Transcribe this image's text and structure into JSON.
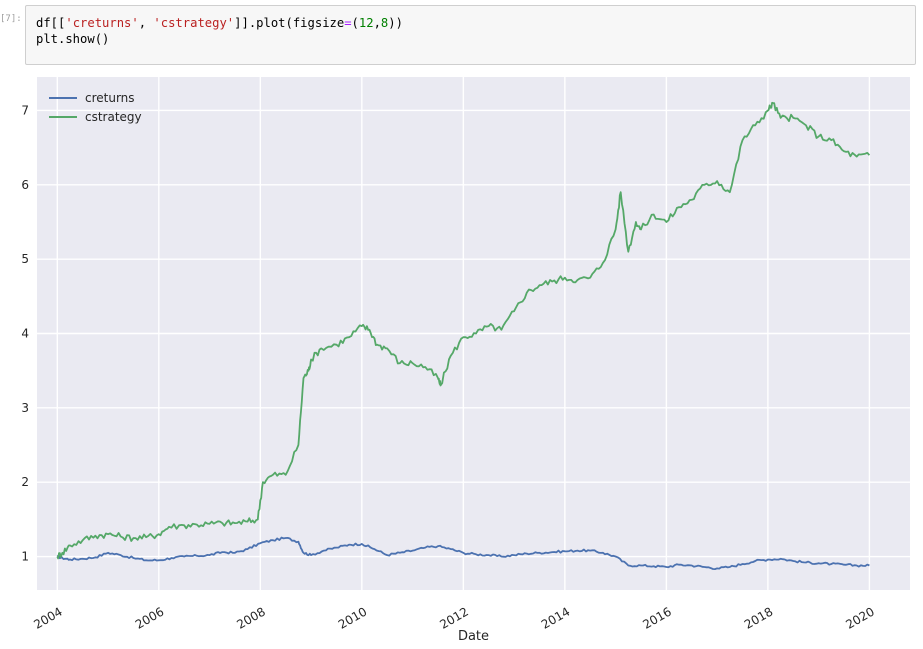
{
  "cell": {
    "prompt": "[7]:",
    "code_lines": [
      [
        {
          "t": "df[[",
          "c": ""
        },
        {
          "t": "'creturns'",
          "c": "str"
        },
        {
          "t": ", ",
          "c": ""
        },
        {
          "t": "'cstrategy'",
          "c": "str"
        },
        {
          "t": "]].plot(figsize",
          "c": ""
        },
        {
          "t": "=",
          "c": "op"
        },
        {
          "t": "(",
          "c": ""
        },
        {
          "t": "12",
          "c": "num"
        },
        {
          "t": ",",
          "c": ""
        },
        {
          "t": "8",
          "c": "num"
        },
        {
          "t": "))",
          "c": ""
        }
      ],
      [
        {
          "t": "plt.show()",
          "c": ""
        }
      ]
    ]
  },
  "chart_data": {
    "type": "line",
    "title": "",
    "xlabel": "Date",
    "ylabel": "",
    "xlim": [
      2003.6,
      2020.8
    ],
    "ylim": [
      0.55,
      7.45
    ],
    "x_ticks": [
      "2004",
      "2006",
      "2008",
      "2010",
      "2012",
      "2014",
      "2016",
      "2018",
      "2020"
    ],
    "y_ticks": [
      "1",
      "2",
      "3",
      "4",
      "5",
      "6",
      "7"
    ],
    "grid": true,
    "legend": "top-left",
    "series": [
      {
        "name": "creturns",
        "color": "#4c72b0",
        "x": [
          2004.0,
          2004.1,
          2004.25,
          2004.5,
          2004.75,
          2005.0,
          2005.25,
          2005.5,
          2005.75,
          2006.0,
          2006.25,
          2006.5,
          2006.75,
          2007.0,
          2007.25,
          2007.5,
          2007.75,
          2008.0,
          2008.25,
          2008.5,
          2008.75,
          2008.85,
          2009.0,
          2009.25,
          2009.5,
          2009.75,
          2010.0,
          2010.25,
          2010.5,
          2010.75,
          2011.0,
          2011.25,
          2011.5,
          2011.75,
          2012.0,
          2012.25,
          2012.5,
          2012.75,
          2013.0,
          2013.25,
          2013.5,
          2013.75,
          2014.0,
          2014.25,
          2014.5,
          2014.75,
          2015.0,
          2015.25,
          2015.5,
          2015.75,
          2016.0,
          2016.25,
          2016.5,
          2016.75,
          2017.0,
          2017.25,
          2017.5,
          2017.75,
          2018.0,
          2018.25,
          2018.5,
          2018.75,
          2019.0,
          2019.25,
          2019.5,
          2019.75,
          2020.0
        ],
        "y": [
          1.0,
          0.98,
          0.96,
          0.97,
          0.99,
          1.05,
          1.02,
          0.98,
          0.95,
          0.95,
          0.98,
          1.0,
          1.01,
          1.02,
          1.06,
          1.05,
          1.1,
          1.18,
          1.22,
          1.25,
          1.2,
          1.05,
          1.02,
          1.08,
          1.12,
          1.16,
          1.17,
          1.1,
          1.02,
          1.05,
          1.08,
          1.12,
          1.14,
          1.1,
          1.05,
          1.03,
          1.02,
          1.0,
          1.02,
          1.04,
          1.05,
          1.06,
          1.07,
          1.08,
          1.08,
          1.05,
          1.0,
          0.88,
          0.88,
          0.87,
          0.86,
          0.89,
          0.88,
          0.86,
          0.84,
          0.86,
          0.9,
          0.94,
          0.96,
          0.97,
          0.94,
          0.92,
          0.91,
          0.9,
          0.89,
          0.88,
          0.88
        ]
      },
      {
        "name": "cstrategy",
        "color": "#55a868",
        "x": [
          2004.0,
          2004.1,
          2004.25,
          2004.5,
          2004.75,
          2005.0,
          2005.25,
          2005.5,
          2005.75,
          2006.0,
          2006.2,
          2006.5,
          2006.75,
          2007.0,
          2007.25,
          2007.5,
          2007.75,
          2007.95,
          2008.05,
          2008.25,
          2008.5,
          2008.75,
          2008.85,
          2008.95,
          2009.0,
          2009.2,
          2009.5,
          2009.75,
          2010.0,
          2010.15,
          2010.3,
          2010.5,
          2010.75,
          2011.0,
          2011.25,
          2011.5,
          2011.55,
          2011.75,
          2012.0,
          2012.25,
          2012.5,
          2012.75,
          2013.0,
          2013.25,
          2013.5,
          2013.75,
          2014.0,
          2014.25,
          2014.5,
          2014.75,
          2015.0,
          2015.1,
          2015.25,
          2015.4,
          2015.5,
          2015.75,
          2016.0,
          2016.25,
          2016.5,
          2016.75,
          2017.0,
          2017.25,
          2017.5,
          2017.75,
          2018.0,
          2018.1,
          2018.25,
          2018.5,
          2018.75,
          2019.0,
          2019.25,
          2019.5,
          2019.75,
          2020.0
        ],
        "y": [
          1.0,
          1.05,
          1.15,
          1.22,
          1.28,
          1.3,
          1.27,
          1.25,
          1.26,
          1.3,
          1.4,
          1.42,
          1.43,
          1.44,
          1.45,
          1.45,
          1.47,
          1.5,
          2.0,
          2.1,
          2.1,
          2.5,
          3.4,
          3.5,
          3.65,
          3.8,
          3.85,
          3.95,
          4.1,
          4.05,
          3.85,
          3.8,
          3.6,
          3.6,
          3.55,
          3.4,
          3.3,
          3.7,
          3.95,
          4.0,
          4.1,
          4.05,
          4.3,
          4.55,
          4.65,
          4.7,
          4.75,
          4.72,
          4.75,
          4.95,
          5.4,
          5.9,
          5.1,
          5.5,
          5.4,
          5.6,
          5.5,
          5.7,
          5.8,
          6.0,
          6.05,
          5.9,
          6.6,
          6.8,
          7.0,
          7.1,
          6.9,
          6.9,
          6.8,
          6.65,
          6.6,
          6.45,
          6.38,
          6.4
        ]
      }
    ]
  }
}
